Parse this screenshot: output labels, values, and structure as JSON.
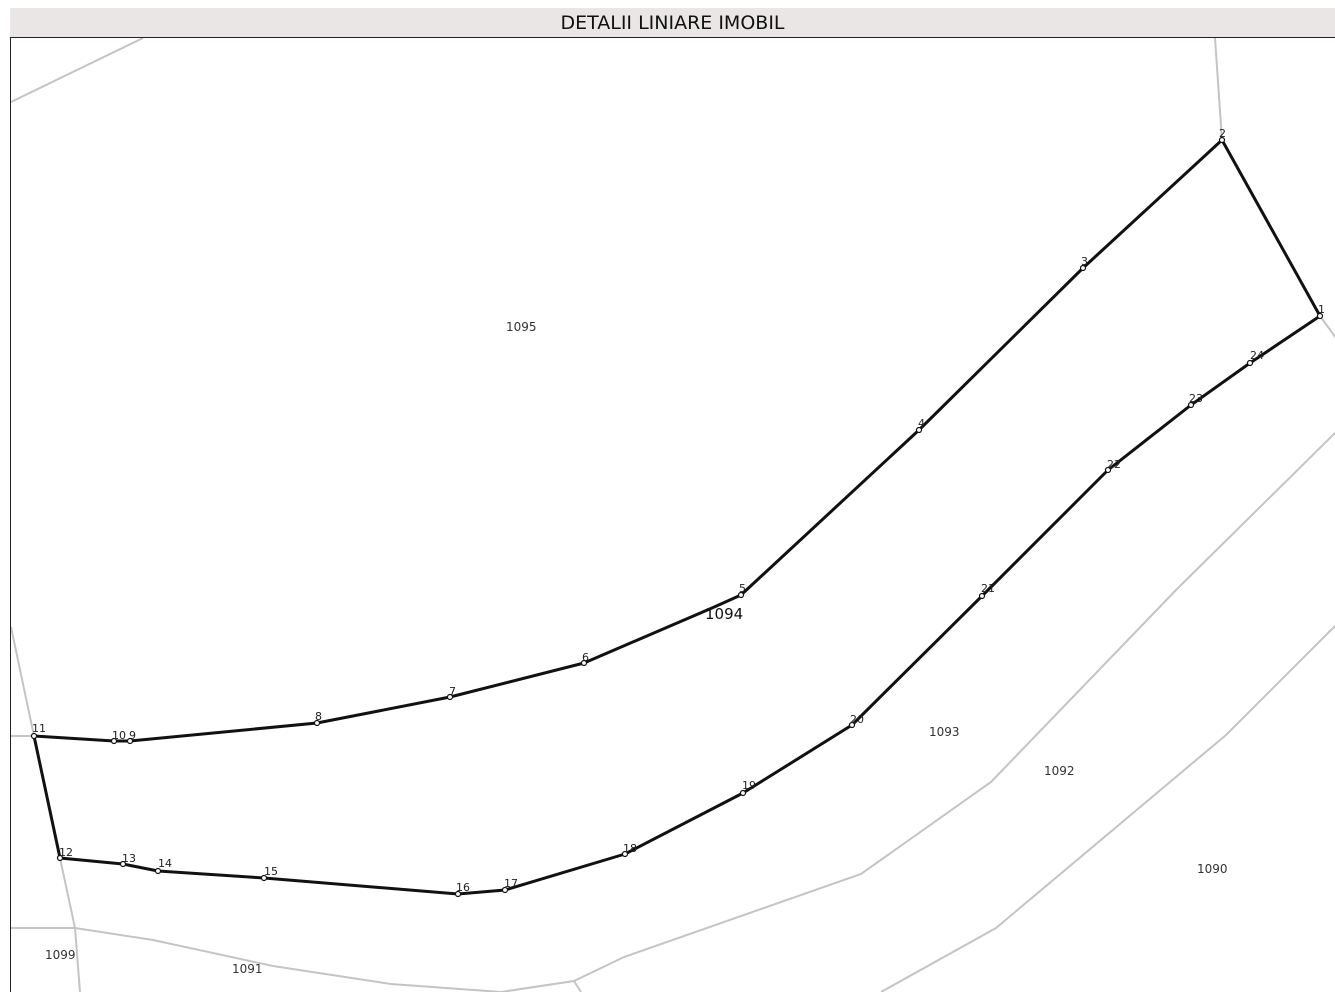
{
  "header": {
    "title": "DETALII LINIARE IMOBIL"
  },
  "map": {
    "colors": {
      "parcel_outline": "#111111",
      "neighbor_lines": "#c4c4c4",
      "title_background": "#eae6e6"
    },
    "main_parcel_label": "1094",
    "neighbor_parcels": [
      "1095",
      "1093",
      "1092",
      "1090",
      "1099",
      "1091"
    ],
    "vertices": [
      "1",
      "2",
      "3",
      "4",
      "5",
      "6",
      "7",
      "8",
      "9",
      "10",
      "11",
      "12",
      "13",
      "14",
      "15",
      "16",
      "17",
      "18",
      "19",
      "20",
      "21",
      "22",
      "23",
      "24"
    ]
  }
}
